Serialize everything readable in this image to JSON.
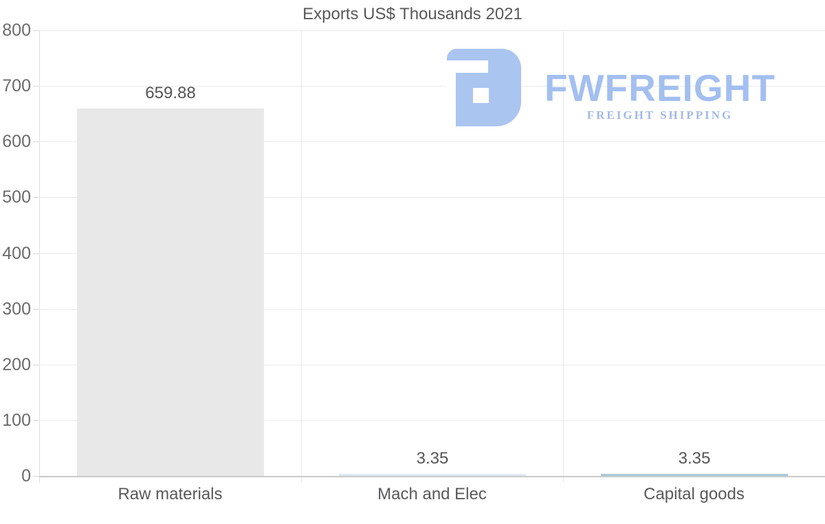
{
  "chart_data": {
    "type": "bar",
    "title": "Exports US$ Thousands 2021",
    "categories": [
      "Raw materials",
      "Mach and Elec",
      "Capital goods"
    ],
    "values": [
      659.88,
      3.35,
      3.35
    ],
    "value_labels": [
      "659.88",
      "3.35",
      "3.35"
    ],
    "bar_colors": [
      "#e8e8e8",
      "#dfe8f2",
      "#a9c9dd"
    ],
    "xlabel": "",
    "ylabel": "",
    "ylim": [
      0,
      800
    ],
    "yticks": [
      0,
      100,
      200,
      300,
      400,
      500,
      600,
      700,
      800
    ],
    "grid": "horizontal gridlines on, vertical category separators on",
    "legend": "none"
  },
  "logo": {
    "brand": "FWFREIGHT",
    "tagline": "FREIGHT SHIPPING",
    "icon": "fwfreight-mark-icon",
    "brand_color": "#a3bff0",
    "tagline_color": "#a3b9e8",
    "mark_color": "#abc5f1"
  },
  "colors": {
    "background": "#ffffff",
    "title_text": "#595959",
    "axis_label_text": "#6b6b6b",
    "value_label_text": "#545454",
    "category_label_text": "#58595b",
    "gridline": "#ebebeb",
    "axis_line": "#c9c9c9"
  }
}
